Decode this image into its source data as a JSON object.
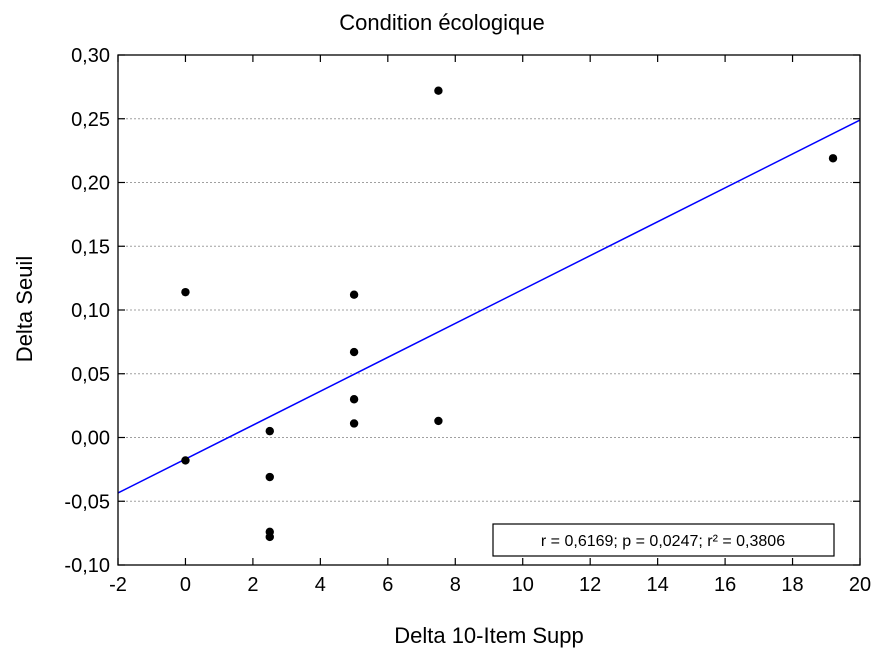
{
  "chart_data": {
    "type": "scatter",
    "title": "Condition écologique",
    "xlabel": "Delta 10-Item Supp",
    "ylabel": "Delta Seuil",
    "xlim": [
      -2,
      20
    ],
    "ylim": [
      -0.1,
      0.3
    ],
    "x_ticks": [
      -2,
      0,
      2,
      4,
      6,
      8,
      10,
      12,
      14,
      16,
      18,
      20
    ],
    "x_tick_labels": [
      "-2",
      "0",
      "2",
      "4",
      "6",
      "8",
      "10",
      "12",
      "14",
      "16",
      "18",
      "20"
    ],
    "y_ticks": [
      -0.1,
      -0.05,
      0.0,
      0.05,
      0.1,
      0.15,
      0.2,
      0.25,
      0.3
    ],
    "y_tick_labels": [
      "-0,10",
      "-0,05",
      "0,00",
      "0,05",
      "0,10",
      "0,15",
      "0,20",
      "0,25",
      "0,30"
    ],
    "grid": true,
    "series": [
      {
        "points": [
          {
            "x": 0,
            "y": 0.114
          },
          {
            "x": 0,
            "y": -0.018
          },
          {
            "x": 2.5,
            "y": 0.005
          },
          {
            "x": 2.5,
            "y": -0.031
          },
          {
            "x": 2.5,
            "y": -0.074
          },
          {
            "x": 2.5,
            "y": -0.078
          },
          {
            "x": 5,
            "y": 0.112
          },
          {
            "x": 5,
            "y": 0.067
          },
          {
            "x": 5,
            "y": 0.03
          },
          {
            "x": 5,
            "y": 0.011
          },
          {
            "x": 7.5,
            "y": 0.272
          },
          {
            "x": 7.5,
            "y": 0.013
          },
          {
            "x": 19.2,
            "y": 0.219
          }
        ],
        "color": "#000000"
      }
    ],
    "fit_line": {
      "x": [
        -2,
        20
      ],
      "y": [
        -0.0435,
        0.249
      ],
      "color": "#0000ff"
    },
    "annotation": "r = 0,6169; p = 0,0247; r² = 0,3806"
  }
}
